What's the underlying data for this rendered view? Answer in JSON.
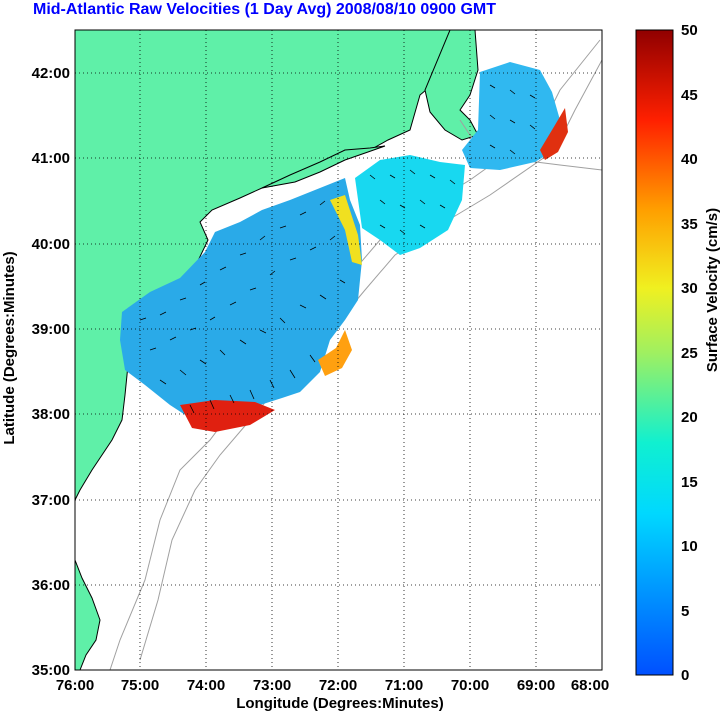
{
  "title": "Mid-Atlantic Raw Velocities (1 Day Avg) 2008/08/10 0900 GMT",
  "colors": {
    "land": "#5ff0a8",
    "title": "#0000ff",
    "grid": "#000000",
    "bathymetry": "#a0a0a0",
    "vector": "#000000"
  },
  "map": {
    "xlabel": "Longitude (Degrees:Minutes)",
    "ylabel": "Latitude (Degrees:Minutes)",
    "x_ticks": [
      "76:00",
      "75:00",
      "74:00",
      "73:00",
      "72:00",
      "71:00",
      "70:00",
      "69:00",
      "68:00"
    ],
    "y_ticks": [
      "35:00",
      "36:00",
      "37:00",
      "38:00",
      "39:00",
      "40:00",
      "41:00",
      "42:00"
    ],
    "lon_range": [
      -76,
      -68
    ],
    "lat_range": [
      35,
      42.5
    ],
    "grid": "dotted"
  },
  "colorbar": {
    "label": "Surface Velocity (cm/s)",
    "ticks": [
      "0",
      "5",
      "10",
      "15",
      "20",
      "25",
      "30",
      "35",
      "40",
      "45",
      "50"
    ],
    "range": [
      0,
      50
    ],
    "colormap": "jet"
  }
}
